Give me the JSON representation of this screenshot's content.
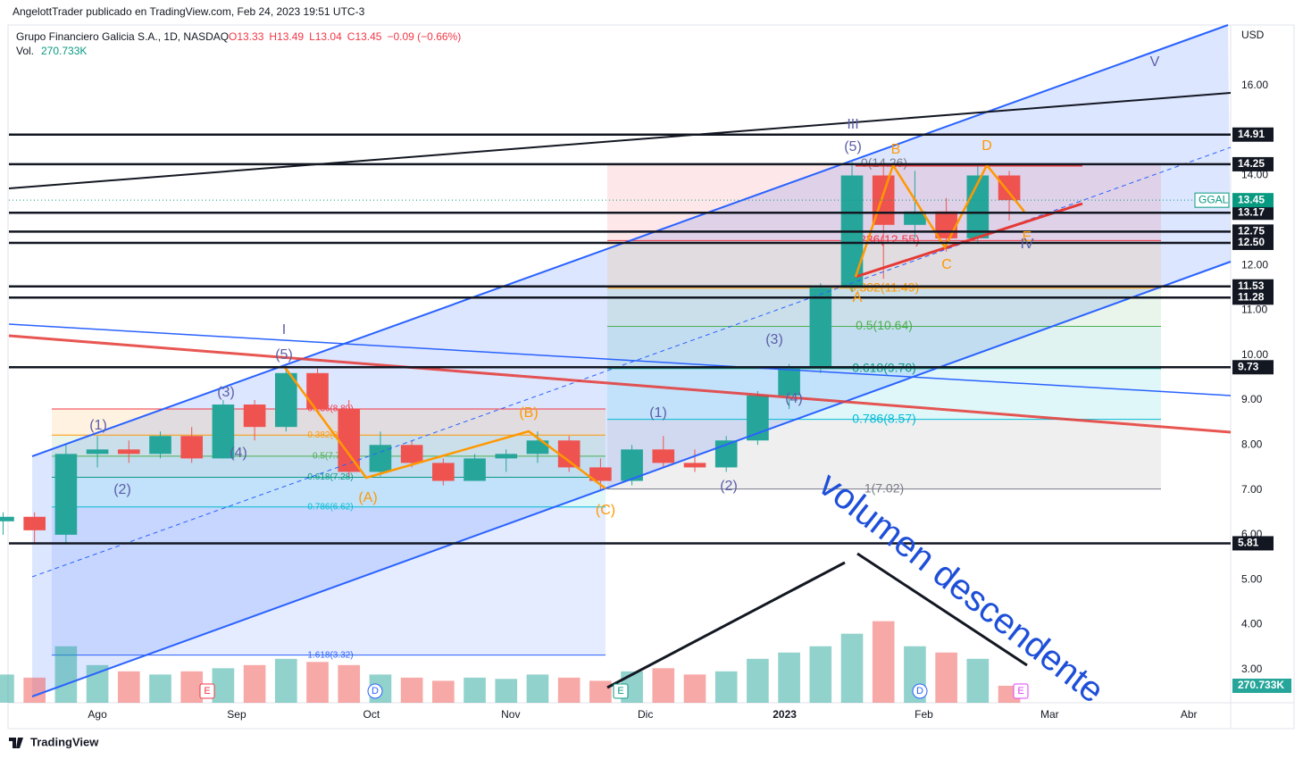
{
  "header": {
    "publisher": "AngelottTrader publicado en TradingView.com, Feb 24, 2023 19:51 UTC-3",
    "symbol": "Grupo Financiero Galicia S.A., 1D, NASDAQ",
    "ohlc": [
      "O13.33",
      "H13.49",
      "L13.04",
      "C13.45",
      "−0.09 (−0.66%)"
    ],
    "volume_label": "Vol.",
    "volume_value": "270.733K"
  },
  "chart_data": {
    "type": "candlestick",
    "up_color": "#26a69a",
    "down_color": "#ef5350",
    "currency": "USD",
    "ticker": "GGAL",
    "x": [
      -21,
      -14,
      -7,
      0,
      7,
      14,
      21,
      28,
      35,
      42,
      49,
      56,
      63,
      70,
      77,
      84,
      91,
      98,
      105,
      112,
      119,
      126,
      133,
      140,
      147,
      154,
      161,
      168,
      175,
      182,
      189,
      196,
      203
    ],
    "open": [
      6.3,
      6.4,
      6.0,
      7.8,
      7.9,
      7.8,
      8.2,
      7.7,
      8.9,
      8.4,
      9.6,
      8.8,
      7.4,
      8.0,
      7.6,
      7.2,
      7.7,
      7.8,
      8.1,
      7.5,
      7.2,
      7.9,
      7.6,
      7.5,
      8.1,
      9.1,
      9.7,
      11.5,
      14.0,
      12.9,
      13.2,
      12.6,
      14.0
    ],
    "high": [
      6.5,
      6.5,
      8.0,
      8.2,
      8.1,
      8.3,
      8.4,
      9.0,
      9.0,
      9.8,
      9.7,
      9.0,
      8.3,
      8.1,
      7.7,
      7.8,
      7.9,
      8.3,
      8.2,
      7.7,
      8.0,
      8.2,
      7.9,
      8.2,
      9.2,
      9.8,
      11.6,
      14.3,
      14.2,
      14.1,
      13.5,
      14.25,
      14.1
    ],
    "low": [
      6.0,
      5.8,
      5.8,
      7.5,
      7.6,
      7.7,
      7.6,
      7.7,
      8.1,
      8.3,
      8.7,
      7.3,
      7.3,
      7.5,
      7.1,
      7.2,
      7.4,
      7.6,
      7.4,
      7.0,
      7.1,
      7.5,
      7.4,
      7.4,
      8.0,
      8.8,
      9.6,
      11.4,
      11.7,
      12.6,
      12.3,
      12.5,
      13.0
    ],
    "close": [
      6.4,
      6.1,
      7.8,
      7.9,
      7.8,
      8.2,
      7.7,
      8.9,
      8.4,
      9.6,
      8.8,
      7.4,
      8.0,
      7.6,
      7.2,
      7.7,
      7.8,
      8.1,
      7.5,
      7.2,
      7.9,
      7.6,
      7.5,
      8.1,
      9.1,
      9.7,
      11.5,
      14.0,
      12.9,
      13.2,
      12.6,
      14.0,
      13.45
    ],
    "volume": [
      450,
      400,
      900,
      600,
      500,
      450,
      500,
      550,
      600,
      700,
      650,
      600,
      450,
      400,
      350,
      400,
      380,
      450,
      400,
      350,
      500,
      550,
      450,
      500,
      700,
      800,
      900,
      1100,
      1300,
      900,
      800,
      700,
      270.733
    ],
    "volume_lim": [
      0,
      10800
    ],
    "xlim": [
      -19.7,
      252.3
    ],
    "xticks": [
      {
        "value": 0,
        "label": "Ago"
      },
      {
        "value": 31,
        "label": "Sep"
      },
      {
        "value": 61,
        "label": "Oct"
      },
      {
        "value": 92,
        "label": "Nov"
      },
      {
        "value": 122,
        "label": "Dic"
      },
      {
        "value": 153,
        "label": "2023"
      },
      {
        "value": 184,
        "label": "Feb"
      },
      {
        "value": 212,
        "label": "Mar"
      },
      {
        "value": 243,
        "label": "Abr"
      }
    ],
    "ylim": [
      2.26,
      17.35
    ],
    "yticks": [
      {
        "value": 3,
        "label": "3.00"
      },
      {
        "value": 4,
        "label": "4.00"
      },
      {
        "value": 5,
        "label": "5.00"
      },
      {
        "value": 6,
        "label": "6.00"
      },
      {
        "value": 7,
        "label": "7.00"
      },
      {
        "value": 8,
        "label": "8.00"
      },
      {
        "value": 9,
        "label": "9.00"
      },
      {
        "value": 10,
        "label": "10.00"
      },
      {
        "value": 11,
        "label": "11.00"
      },
      {
        "value": 12,
        "label": "12.00"
      },
      {
        "value": 14,
        "label": "14.00"
      },
      {
        "value": 16,
        "label": "16.00"
      }
    ],
    "levels": [
      14.91,
      14.25,
      13.17,
      12.75,
      {
        "value": 12.5,
        "label": "12.50"
      },
      11.53,
      11.28,
      9.73,
      5.81
    ],
    "last_price": 13.45,
    "last_volume_label": "270.733K",
    "fib_right": [
      {
        "value": 14.26,
        "label": "0(14.26)",
        "color": "#787b86"
      },
      {
        "value": 12.55,
        "label": "0.236(12.55)",
        "color": "#f23645"
      },
      {
        "value": 11.49,
        "label": "0.382(11.49)",
        "color": "#ff9800"
      },
      {
        "value": 10.64,
        "label": "0.5(10.64)",
        "color": "#4caf50"
      },
      {
        "value": 9.7,
        "label": "0.618(9.70)",
        "color": "#089981"
      },
      {
        "value": 8.57,
        "label": "0.786(8.57)",
        "color": "#00bcd4"
      },
      {
        "value": 7.02,
        "label": "1(7.02)",
        "color": "#787b86"
      }
    ],
    "fib_left": [
      {
        "value": 8.8,
        "label": "0.236(8.80)",
        "color": "#f23645"
      },
      {
        "value": 8.22,
        "label": "0.382(8.22)",
        "color": "#ff9800"
      },
      {
        "value": 7.75,
        "label": "0.5(7.75)",
        "color": "#4caf50"
      },
      {
        "value": 7.28,
        "label": "0.618(7.28)",
        "color": "#089981"
      },
      {
        "value": 6.62,
        "label": "0.786(6.62)",
        "color": "#00bcd4"
      },
      {
        "value": 3.32,
        "label": "1.618(3.32)",
        "color": "#2962ff"
      }
    ],
    "waves": [
      "I",
      "(5)",
      "(3)",
      "(1)",
      "(2)",
      "(4)",
      "(A)",
      "(B)",
      "(C)",
      "(1)",
      "(2)",
      "(3)",
      "(4)",
      "(5)",
      "III",
      "B",
      "D",
      "A",
      "C",
      "E",
      "IV",
      "V"
    ],
    "events": [
      "E",
      "D",
      "E",
      "D",
      "E"
    ],
    "annotation": "volumen descendente"
  },
  "footer": "TradingView"
}
